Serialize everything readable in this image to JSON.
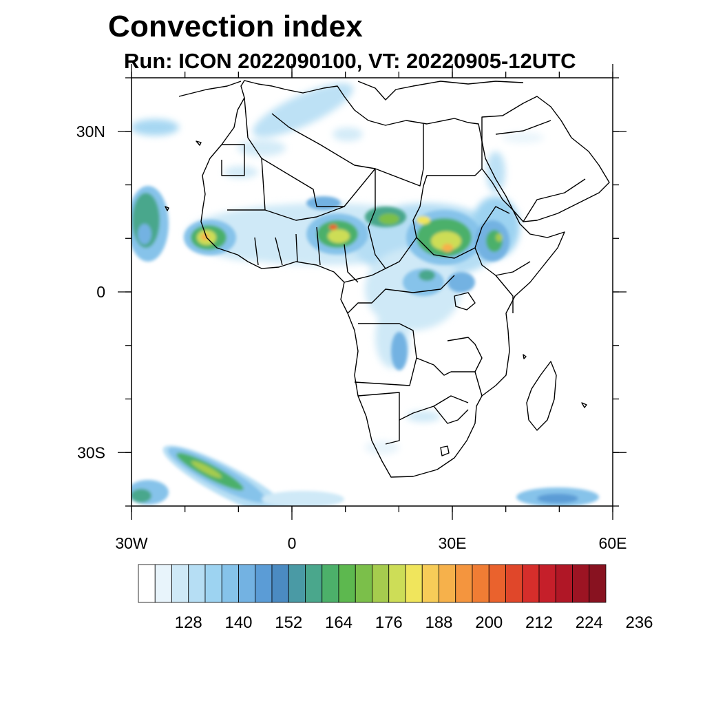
{
  "header": {
    "title": "Convection index",
    "subtitle": "Run: ICON 2022090100,  VT: 20220905-12UTC"
  },
  "map": {
    "region": "Africa",
    "lon_range": [
      -30,
      60
    ],
    "lat_range": [
      -40,
      40
    ],
    "lon_ticks": [
      {
        "value": -30,
        "label": "30W"
      },
      {
        "value": 0,
        "label": "0"
      },
      {
        "value": 30,
        "label": "30E"
      },
      {
        "value": 60,
        "label": "60E"
      }
    ],
    "lat_ticks": [
      {
        "value": 30,
        "label": "30N"
      },
      {
        "value": 0,
        "label": "0"
      },
      {
        "value": -30,
        "label": "30S"
      }
    ],
    "coastline_color": "#000000",
    "fields": [
      {
        "name": "west-atlantic-cells",
        "lon": -28,
        "lat": 15,
        "max": 160
      },
      {
        "name": "senegal-guinea-core",
        "lon": -14,
        "lat": 10,
        "max": 198
      },
      {
        "name": "nigeria-core",
        "lon": 7,
        "lat": 11,
        "max": 205
      },
      {
        "name": "chad-band",
        "lon": 15,
        "lat": 12,
        "max": 175
      },
      {
        "name": "sudan-core",
        "lon": 28,
        "lat": 10,
        "max": 195
      },
      {
        "name": "ethiopia-cells",
        "lon": 38,
        "lat": 11,
        "max": 180
      },
      {
        "name": "congo-region",
        "lon": 24,
        "lat": 2,
        "max": 170
      },
      {
        "name": "angola-patch",
        "lon": 20,
        "lat": -12,
        "max": 160
      },
      {
        "name": "south-atlantic-band",
        "lon": -12,
        "lat": -36,
        "max": 176
      },
      {
        "name": "indian-ocean-patch",
        "lon": 50,
        "lat": -38,
        "max": 150
      }
    ]
  },
  "colorbar": {
    "labels": [
      "128",
      "140",
      "152",
      "164",
      "176",
      "188",
      "200",
      "212",
      "224",
      "236"
    ],
    "colors": [
      "#ffffff",
      "#e8f4fb",
      "#cfe9f7",
      "#b6def4",
      "#9dd3f1",
      "#86c3ea",
      "#73b2e2",
      "#5b9cd6",
      "#4b8bc2",
      "#4a9aa5",
      "#4aa78c",
      "#4cb06a",
      "#5db84f",
      "#7bbf4a",
      "#a6cc4e",
      "#cddd57",
      "#f0e55c",
      "#f7cc58",
      "#f6b14b",
      "#f4953e",
      "#f07d34",
      "#ea622d",
      "#e0472a",
      "#d62e2b",
      "#c51f2a",
      "#b01726",
      "#9c1423",
      "#881220"
    ]
  }
}
